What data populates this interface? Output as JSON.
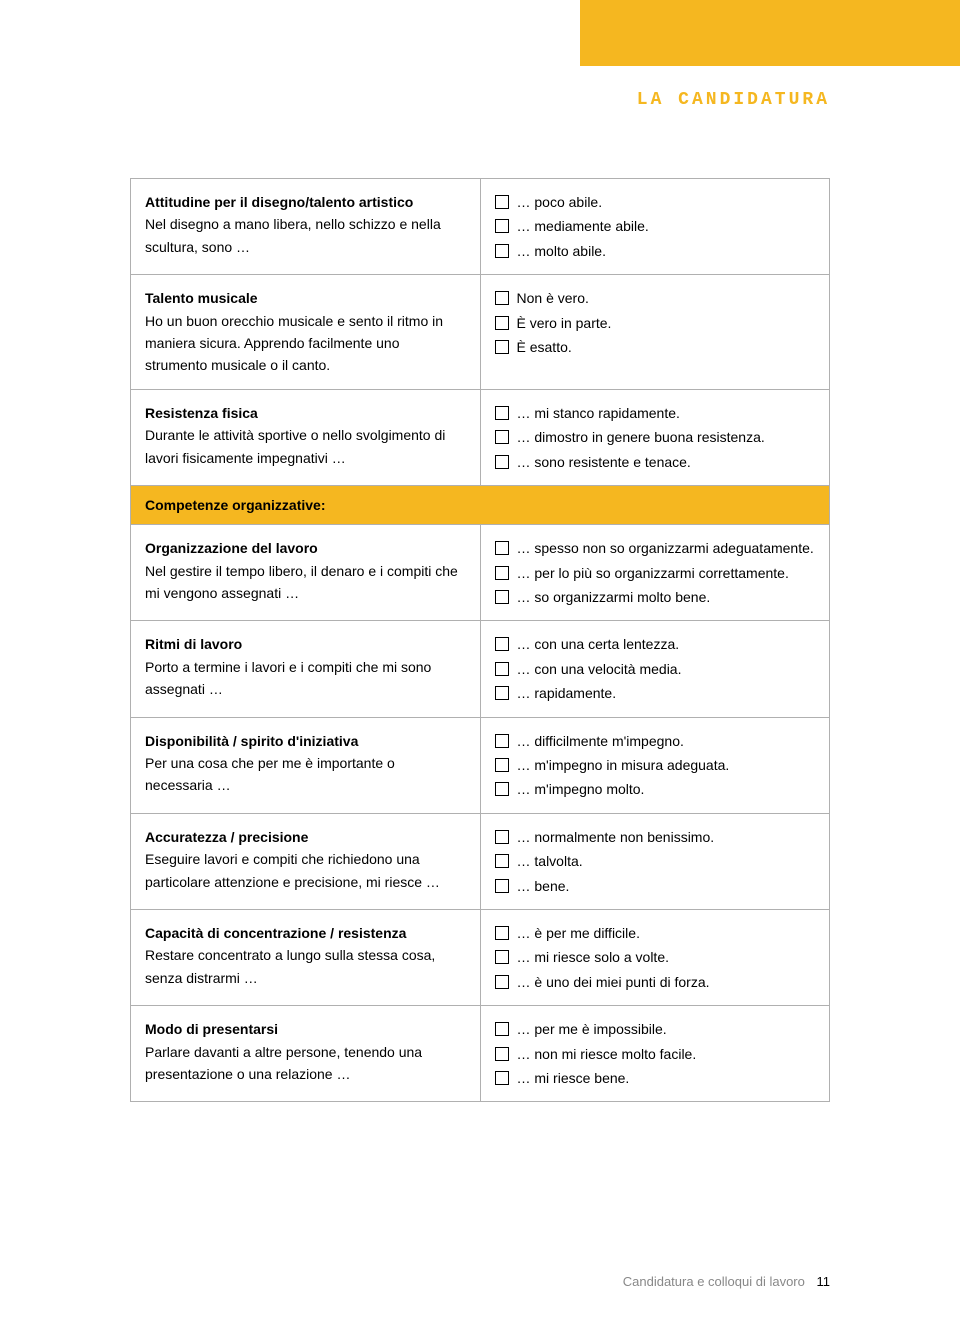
{
  "header": "LA CANDIDATURA",
  "section_header": "Competenze organizzative:",
  "footer_text": "Candidatura e colloqui di lavoro",
  "page_number": "11",
  "colors": {
    "accent": "#f5b720",
    "border": "#b0b0b0",
    "footer_text": "#888888"
  },
  "rows": [
    {
      "title": "Attitudine per il disegno/talento artistico",
      "desc": "Nel disegno a mano libera, nello schizzo e nella scultura, sono …",
      "options": [
        "… poco abile.",
        "… mediamente abile.",
        "… molto abile."
      ]
    },
    {
      "title": "Talento musicale",
      "desc": "Ho un buon orecchio musicale e sento il ritmo in maniera sicura. Apprendo facilmente uno strumento musicale o il canto.",
      "options": [
        "Non è vero.",
        "È vero in parte.",
        "È esatto."
      ]
    },
    {
      "title": "Resistenza fisica",
      "desc": "Durante le attività sportive o nello svolgimento di lavori fisicamente impegnativi …",
      "options": [
        "… mi stanco rapidamente.",
        "… dimostro in genere buona resistenza.",
        "… sono resistente e tenace."
      ]
    },
    {
      "title": "Organizzazione del lavoro",
      "desc": "Nel gestire il tempo libero, il denaro e i compiti che mi vengono assegnati …",
      "options": [
        "… spesso non so organizzarmi adeguatamente.",
        "… per lo più so organizzarmi correttamente.",
        "… so organizzarmi molto bene."
      ]
    },
    {
      "title": "Ritmi di lavoro",
      "desc": "Porto a termine i lavori e i compiti che mi sono assegnati …",
      "options": [
        "… con una certa lentezza.",
        "… con una velocità media.",
        "… rapidamente."
      ]
    },
    {
      "title": "Disponibilità / spirito d'iniziativa",
      "desc": "Per una cosa che per me è importante o necessaria …",
      "options": [
        "… difficilmente m'impegno.",
        "… m'impegno in misura adeguata.",
        "… m'impegno molto."
      ]
    },
    {
      "title": "Accuratezza / precisione",
      "desc": "Eseguire lavori e compiti che richiedono una particolare attenzione e precisione, mi riesce …",
      "options": [
        "… normalmente non benissimo.",
        "… talvolta.",
        "… bene."
      ]
    },
    {
      "title": "Capacità di concentrazione / resistenza",
      "desc": "Restare concentrato a lungo sulla stessa cosa, senza distrarmi …",
      "options": [
        "… è per me difficile.",
        "… mi riesce solo a volte.",
        "… è uno dei miei punti di forza."
      ]
    },
    {
      "title": "Modo di presentarsi",
      "desc": "Parlare davanti a altre persone, tenendo una presentazione o una relazione …",
      "options": [
        "… per me è impossibile.",
        "… non mi riesce molto facile.",
        "… mi riesce bene."
      ]
    }
  ]
}
